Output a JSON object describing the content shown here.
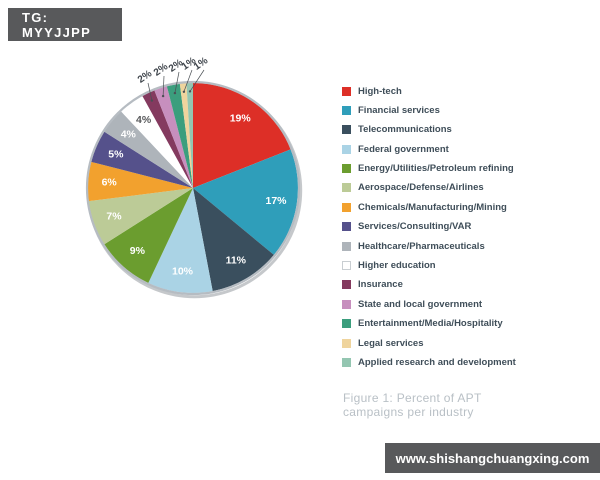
{
  "header": {
    "tag_label": "TG: MYYJJPP"
  },
  "chart_data": {
    "type": "pie",
    "title": "Percent of APT campaigns per industry",
    "value_suffix": "%",
    "legend_position": "right",
    "slices": [
      {
        "label": "High-tech",
        "value": 19,
        "color": "#DD2F27"
      },
      {
        "label": "Financial services",
        "value": 17,
        "color": "#2F9EBA"
      },
      {
        "label": "Telecommunications",
        "value": 11,
        "color": "#3A4F5E"
      },
      {
        "label": "Federal government",
        "value": 10,
        "color": "#AAD3E5"
      },
      {
        "label": "Energy/Utilities/Petroleum refining",
        "value": 9,
        "color": "#6B9D2F"
      },
      {
        "label": "Aerospace/Defense/Airlines",
        "value": 7,
        "color": "#BCCB97"
      },
      {
        "label": "Chemicals/Manufacturing/Mining",
        "value": 6,
        "color": "#F2A12E"
      },
      {
        "label": "Services/Consulting/VAR",
        "value": 5,
        "color": "#55518B"
      },
      {
        "label": "Healthcare/Pharmaceuticals",
        "value": 4,
        "color": "#AEB4BA"
      },
      {
        "label": "Higher education",
        "value": 4,
        "color": "#FFFFFF"
      },
      {
        "label": "Insurance",
        "value": 2,
        "color": "#843A5F"
      },
      {
        "label": "State and local government",
        "value": 2,
        "color": "#C78FBE"
      },
      {
        "label": "Entertainment/Media/Hospitality",
        "value": 2,
        "color": "#3B9E7D"
      },
      {
        "label": "Legal services",
        "value": 1,
        "color": "#EFD49D"
      },
      {
        "label": "Applied research and development",
        "value": 1,
        "color": "#94C6B1"
      }
    ]
  },
  "caption": {
    "line1": "Figure 1: Percent of APT",
    "line2": "campaigns per industry"
  },
  "watermark": {
    "url_label": "www.shishangchuangxing.com"
  },
  "colors": {
    "tag_bg": "#58595B",
    "watermark_bg": "#58595B",
    "legend_text": "#3F4E59",
    "caption_text": "#B9C0C6",
    "pie_rim": "#B6BCC2"
  }
}
